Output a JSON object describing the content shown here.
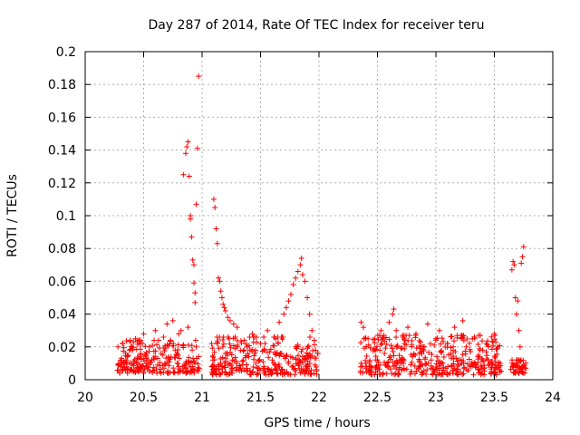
{
  "chart_data": {
    "type": "scatter",
    "title": "Day 287 of 2014, Rate Of TEC Index for receiver teru",
    "xlabel": "GPS time / hours",
    "ylabel": "ROTI / TECUs",
    "xlim": [
      20,
      24
    ],
    "ylim": [
      0,
      0.2
    ],
    "x_ticks": [
      "20",
      "20.5",
      "21",
      "21.5",
      "22",
      "22.5",
      "23",
      "23.5",
      "24"
    ],
    "y_ticks": [
      "0",
      "0.02",
      "0.04",
      "0.06",
      "0.08",
      "0.1",
      "0.12",
      "0.14",
      "0.16",
      "0.18",
      "0.2"
    ],
    "grid": true,
    "marker": "+",
    "color": "#ff0000",
    "series": [
      {
        "name": "ROTI",
        "points": [
          [
            20.28,
            0.02
          ],
          [
            20.3,
            0.008
          ],
          [
            20.32,
            0.022
          ],
          [
            20.35,
            0.012
          ],
          [
            20.38,
            0.018
          ],
          [
            20.4,
            0.006
          ],
          [
            20.43,
            0.025
          ],
          [
            20.45,
            0.01
          ],
          [
            20.47,
            0.014
          ],
          [
            20.5,
            0.028
          ],
          [
            20.52,
            0.008
          ],
          [
            20.55,
            0.02
          ],
          [
            20.57,
            0.012
          ],
          [
            20.6,
            0.03
          ],
          [
            20.62,
            0.009
          ],
          [
            20.65,
            0.016
          ],
          [
            20.67,
            0.026
          ],
          [
            20.7,
            0.034
          ],
          [
            20.72,
            0.011
          ],
          [
            20.75,
            0.036
          ],
          [
            20.77,
            0.018
          ],
          [
            20.8,
            0.028
          ],
          [
            20.82,
            0.03
          ],
          [
            20.84,
            0.125
          ],
          [
            20.86,
            0.138
          ],
          [
            20.87,
            0.142
          ],
          [
            20.88,
            0.145
          ],
          [
            20.89,
            0.124
          ],
          [
            20.9,
            0.098
          ],
          [
            20.9,
            0.1
          ],
          [
            20.91,
            0.087
          ],
          [
            20.92,
            0.073
          ],
          [
            20.93,
            0.07
          ],
          [
            20.93,
            0.059
          ],
          [
            20.94,
            0.053
          ],
          [
            20.94,
            0.047
          ],
          [
            20.95,
            0.107
          ],
          [
            20.96,
            0.141
          ],
          [
            20.97,
            0.185
          ],
          [
            20.86,
            0.01
          ],
          [
            20.88,
            0.032
          ],
          [
            20.92,
            0.008
          ],
          [
            20.95,
            0.02
          ],
          [
            20.97,
            0.014
          ],
          [
            21.1,
            0.11
          ],
          [
            21.11,
            0.105
          ],
          [
            21.12,
            0.092
          ],
          [
            21.13,
            0.083
          ],
          [
            21.14,
            0.062
          ],
          [
            21.15,
            0.06
          ],
          [
            21.16,
            0.054
          ],
          [
            21.17,
            0.05
          ],
          [
            21.18,
            0.046
          ],
          [
            21.19,
            0.044
          ],
          [
            21.2,
            0.042
          ],
          [
            21.22,
            0.038
          ],
          [
            21.24,
            0.036
          ],
          [
            21.27,
            0.034
          ],
          [
            21.3,
            0.032
          ],
          [
            21.1,
            0.008
          ],
          [
            21.13,
            0.022
          ],
          [
            21.16,
            0.01
          ],
          [
            21.2,
            0.016
          ],
          [
            21.23,
            0.025
          ],
          [
            21.26,
            0.012
          ],
          [
            21.3,
            0.02
          ],
          [
            21.33,
            0.007
          ],
          [
            21.36,
            0.024
          ],
          [
            21.4,
            0.014
          ],
          [
            21.43,
            0.028
          ],
          [
            21.46,
            0.01
          ],
          [
            21.5,
            0.022
          ],
          [
            21.53,
            0.018
          ],
          [
            21.56,
            0.03
          ],
          [
            21.6,
            0.012
          ],
          [
            21.63,
            0.025
          ],
          [
            21.66,
            0.035
          ],
          [
            21.7,
            0.04
          ],
          [
            21.72,
            0.044
          ],
          [
            21.74,
            0.048
          ],
          [
            21.76,
            0.052
          ],
          [
            21.78,
            0.058
          ],
          [
            21.8,
            0.062
          ],
          [
            21.82,
            0.066
          ],
          [
            21.84,
            0.07
          ],
          [
            21.85,
            0.074
          ],
          [
            21.86,
            0.064
          ],
          [
            21.88,
            0.06
          ],
          [
            21.9,
            0.05
          ],
          [
            21.92,
            0.04
          ],
          [
            21.94,
            0.03
          ],
          [
            21.96,
            0.024
          ],
          [
            21.62,
            0.009
          ],
          [
            21.68,
            0.016
          ],
          [
            21.74,
            0.011
          ],
          [
            21.8,
            0.02
          ],
          [
            21.86,
            0.014
          ],
          [
            21.92,
            0.01
          ],
          [
            21.97,
            0.018
          ],
          [
            22.36,
            0.035
          ],
          [
            22.38,
            0.032
          ],
          [
            22.4,
            0.01
          ],
          [
            22.42,
            0.025
          ],
          [
            22.45,
            0.005
          ],
          [
            22.48,
            0.018
          ],
          [
            22.5,
            0.012
          ],
          [
            22.53,
            0.03
          ],
          [
            22.56,
            0.016
          ],
          [
            22.6,
            0.035
          ],
          [
            22.63,
            0.04
          ],
          [
            22.64,
            0.043
          ],
          [
            22.66,
            0.03
          ],
          [
            22.7,
            0.01
          ],
          [
            22.73,
            0.022
          ],
          [
            22.76,
            0.032
          ],
          [
            22.8,
            0.014
          ],
          [
            22.83,
            0.028
          ],
          [
            22.86,
            0.008
          ],
          [
            22.9,
            0.02
          ],
          [
            22.93,
            0.034
          ],
          [
            22.96,
            0.012
          ],
          [
            23.0,
            0.025
          ],
          [
            23.03,
            0.03
          ],
          [
            23.06,
            0.01
          ],
          [
            23.1,
            0.022
          ],
          [
            23.13,
            0.016
          ],
          [
            23.16,
            0.032
          ],
          [
            23.2,
            0.012
          ],
          [
            23.23,
            0.036
          ],
          [
            23.26,
            0.02
          ],
          [
            23.3,
            0.008
          ],
          [
            23.33,
            0.026
          ],
          [
            23.36,
            0.014
          ],
          [
            23.4,
            0.018
          ],
          [
            23.43,
            0.022
          ],
          [
            23.46,
            0.01
          ],
          [
            23.5,
            0.028
          ],
          [
            23.53,
            0.02
          ],
          [
            23.55,
            0.01
          ],
          [
            23.65,
            0.067
          ],
          [
            23.66,
            0.072
          ],
          [
            23.67,
            0.07
          ],
          [
            23.68,
            0.05
          ],
          [
            23.69,
            0.04
          ],
          [
            23.7,
            0.048
          ],
          [
            23.71,
            0.03
          ],
          [
            23.72,
            0.02
          ],
          [
            23.73,
            0.071
          ],
          [
            23.74,
            0.075
          ],
          [
            23.75,
            0.081
          ],
          [
            23.66,
            0.008
          ],
          [
            23.7,
            0.012
          ],
          [
            23.74,
            0.007
          ]
        ]
      }
    ],
    "dense_bands": [
      {
        "x_from": 20.27,
        "x_to": 20.98,
        "y_low": 0.004,
        "y_high": 0.024
      },
      {
        "x_from": 21.08,
        "x_to": 21.99,
        "y_low": 0.003,
        "y_high": 0.026
      },
      {
        "x_from": 22.35,
        "x_to": 23.56,
        "y_low": 0.003,
        "y_high": 0.027
      },
      {
        "x_from": 23.64,
        "x_to": 23.77,
        "y_low": 0.004,
        "y_high": 0.012
      }
    ]
  }
}
